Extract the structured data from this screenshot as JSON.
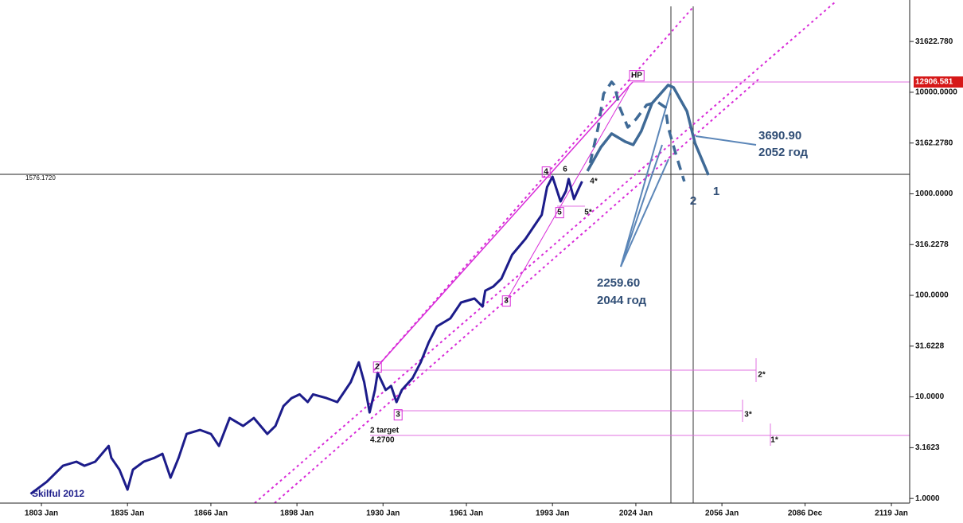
{
  "chart_data": {
    "type": "line",
    "log_scale": true,
    "xlim": [
      1787.6,
      2125.8
    ],
    "ylim": [
      0.9,
      81000
    ],
    "xticks": [
      {
        "value": 1803,
        "label": "1803 Jan"
      },
      {
        "value": 1835,
        "label": "1835 Jan"
      },
      {
        "value": 1866,
        "label": "1866 Jan"
      },
      {
        "value": 1898,
        "label": "1898 Jan"
      },
      {
        "value": 1930,
        "label": "1930 Jan"
      },
      {
        "value": 1961,
        "label": "1961 Jan"
      },
      {
        "value": 1993,
        "label": "1993 Jan"
      },
      {
        "value": 2024,
        "label": "2024 Jan"
      },
      {
        "value": 2056,
        "label": "2056 Jan"
      },
      {
        "value": 2086.9,
        "label": "2086 Dec"
      },
      {
        "value": 2119,
        "label": "2119 Jan"
      }
    ],
    "yticks": [
      {
        "value": 1,
        "label": "1.0000"
      },
      {
        "value": 3.1623,
        "label": "3.1623"
      },
      {
        "value": 10,
        "label": "10.0000"
      },
      {
        "value": 31.6228,
        "label": "31.6228"
      },
      {
        "value": 100,
        "label": "100.0000"
      },
      {
        "value": 316.2278,
        "label": "316.2278"
      },
      {
        "value": 1000,
        "label": "1000.0000"
      },
      {
        "value": 3162.278,
        "label": "3162.2780"
      },
      {
        "value": 10000,
        "label": "10000.0000"
      },
      {
        "value": 31622.78,
        "label": "31622.780"
      }
    ],
    "series": [
      {
        "color": "#1c1c8a",
        "x": [
          1799,
          1805,
          1808,
          1811,
          1816,
          1819,
          1823,
          1828,
          1829,
          1832,
          1835,
          1837,
          1841,
          1845,
          1848,
          1851,
          1854,
          1857,
          1862,
          1866,
          1869,
          1873,
          1878,
          1882,
          1887,
          1890,
          1893,
          1896,
          1899,
          1902,
          1904,
          1909,
          1913,
          1918,
          1921,
          1923,
          1925,
          1927,
          1928,
          1931,
          1933,
          1935,
          1937,
          1941,
          1944,
          1947,
          1950,
          1955,
          1959,
          1964,
          1967,
          1968,
          1971,
          1974,
          1978,
          1983,
          1986,
          1989,
          1991,
          1993,
          1996,
          1998,
          1999,
          2001,
          2003,
          2004
        ],
        "values": [
          1.11,
          1.46,
          1.75,
          2.1,
          2.3,
          2.1,
          2.3,
          3.29,
          2.51,
          1.92,
          1.22,
          1.92,
          2.3,
          2.51,
          2.75,
          1.6,
          2.51,
          4.32,
          4.73,
          4.32,
          3.29,
          6.2,
          5.17,
          6.2,
          4.32,
          5.17,
          8.12,
          9.73,
          10.6,
          8.89,
          10.6,
          9.73,
          8.89,
          14.0,
          21.9,
          14.0,
          7.03,
          11.7,
          17.3,
          11.7,
          12.8,
          8.89,
          11.7,
          15.3,
          21.9,
          34.5,
          49.4,
          59.3,
          85.0,
          93.0,
          77.6,
          111,
          122,
          146,
          251,
          361,
          473,
          620,
          1166,
          1475,
          842,
          1065,
          1397,
          889,
          1166,
          1324
        ]
      },
      {
        "color": "#3f6a96",
        "x": [
          2006,
          2011,
          2015,
          2020,
          2023,
          2026,
          2030,
          2036,
          2038,
          2043,
          2046,
          2051
        ],
        "values": [
          1675,
          2877,
          3910,
          3264,
          3036,
          4128,
          7766,
          11770,
          11140,
          6486,
          3148,
          1528
        ]
      },
      {
        "color": "#3f6a96",
        "dashed": true,
        "x": [
          2007,
          2010,
          2012,
          2015,
          2016,
          2018,
          2021,
          2024,
          2028,
          2032,
          2035,
          2036,
          2039,
          2042
        ],
        "values": [
          2004,
          4519,
          9641,
          12650,
          11770,
          7096,
          4519,
          5412,
          7499,
          8054,
          7096,
          4519,
          2399,
          1324
        ]
      }
    ],
    "annotations": [
      "HP",
      "4",
      "6",
      "5",
      "5*",
      "4*",
      "3",
      "2",
      "2*",
      "3",
      "3*",
      "1*",
      "2 target",
      "4.2700",
      "1576.1720",
      "Skilful 2012",
      "3690.90",
      "2052 год",
      "2259.60",
      "2044 год",
      "1",
      "2",
      "12906.581"
    ]
  }
}
